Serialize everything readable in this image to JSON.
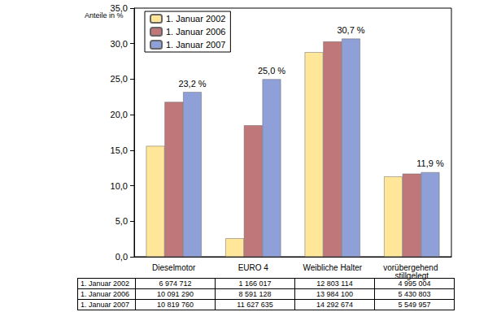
{
  "chart_data": {
    "type": "bar",
    "y_label": "Anteile in %",
    "categories": [
      "Dieselmotor",
      "EURO 4",
      "Weibliche Halter",
      "vorübergehend stillgelegt"
    ],
    "series": [
      {
        "name": "1. Januar 2002",
        "color": "#ffe699",
        "values": [
          15.6,
          2.6,
          28.8,
          11.3
        ]
      },
      {
        "name": "1. Januar 2006",
        "color": "#c0777a",
        "values": [
          21.8,
          18.5,
          30.3,
          11.7
        ]
      },
      {
        "name": "1. Januar 2007",
        "color": "#8fa0d8",
        "values": [
          23.2,
          25.0,
          30.7,
          11.9
        ],
        "data_labels": true,
        "value_labels": [
          "23,2 %",
          "25,0 %",
          "30,7 %",
          "11,9 %"
        ]
      }
    ],
    "ylim": [
      0,
      35
    ],
    "yticks": [
      {
        "value": 0,
        "label": "0,0"
      },
      {
        "value": 5,
        "label": "5,0"
      },
      {
        "value": 10,
        "label": "10,0"
      },
      {
        "value": 15,
        "label": "15,0"
      },
      {
        "value": 20,
        "label": "20,0"
      },
      {
        "value": 25,
        "label": "25,0"
      },
      {
        "value": 30,
        "label": "30,0"
      },
      {
        "value": 35,
        "label": "35,0"
      }
    ],
    "grid": false,
    "legend": "upper left"
  },
  "table": {
    "rows": [
      [
        "1. Januar 2002",
        "6 974 712",
        "1 166 017",
        "12 803 114",
        "4 995 004"
      ],
      [
        "1. Januar 2006",
        "10 091 290",
        "8 591 128",
        "13 984 100",
        "5 430 803"
      ],
      [
        "1. Januar 2007",
        "10 819 760",
        "11 627 635",
        "14 292 674",
        "5 549 957"
      ]
    ]
  }
}
